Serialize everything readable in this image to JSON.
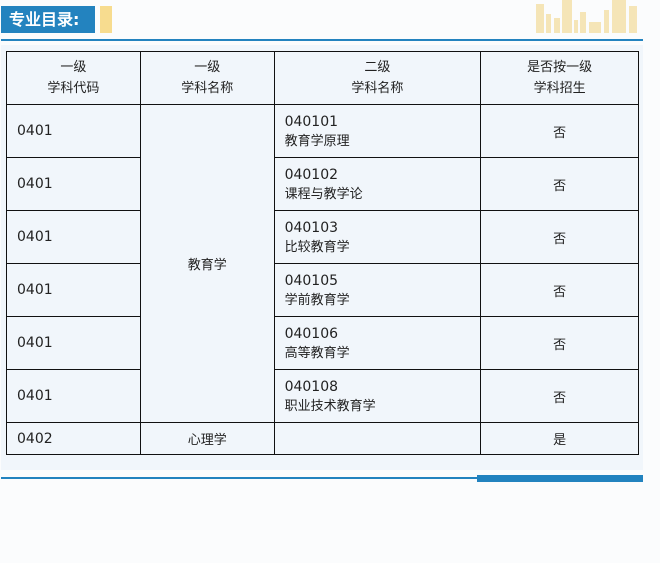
{
  "title": "专业目录:",
  "colors": {
    "accent": "#2383bf",
    "yellow": "#f7dc8f",
    "panel": "#f1f6fb"
  },
  "headers": [
    [
      "一级",
      "学科代码"
    ],
    [
      "一级",
      "学科名称"
    ],
    [
      "二级",
      "学科名称"
    ],
    [
      "是否按一级",
      "学科招生"
    ]
  ],
  "discipline_1": "教育学",
  "rows": [
    {
      "code": "0401",
      "sub_code": "040101",
      "sub_name": "教育学原理",
      "by_first": "否"
    },
    {
      "code": "0401",
      "sub_code": "040102",
      "sub_name": "课程与教学论",
      "by_first": "否"
    },
    {
      "code": "0401",
      "sub_code": "040103",
      "sub_name": "比较教育学",
      "by_first": "否"
    },
    {
      "code": "0401",
      "sub_code": "040105",
      "sub_name": "学前教育学",
      "by_first": "否"
    },
    {
      "code": "0401",
      "sub_code": "040106",
      "sub_name": "高等教育学",
      "by_first": "否"
    },
    {
      "code": "0401",
      "sub_code": "040108",
      "sub_name": "职业技术教育学",
      "by_first": "否"
    }
  ],
  "last_row": {
    "code": "0402",
    "name": "心理学",
    "sub": "",
    "by_first": "是"
  }
}
